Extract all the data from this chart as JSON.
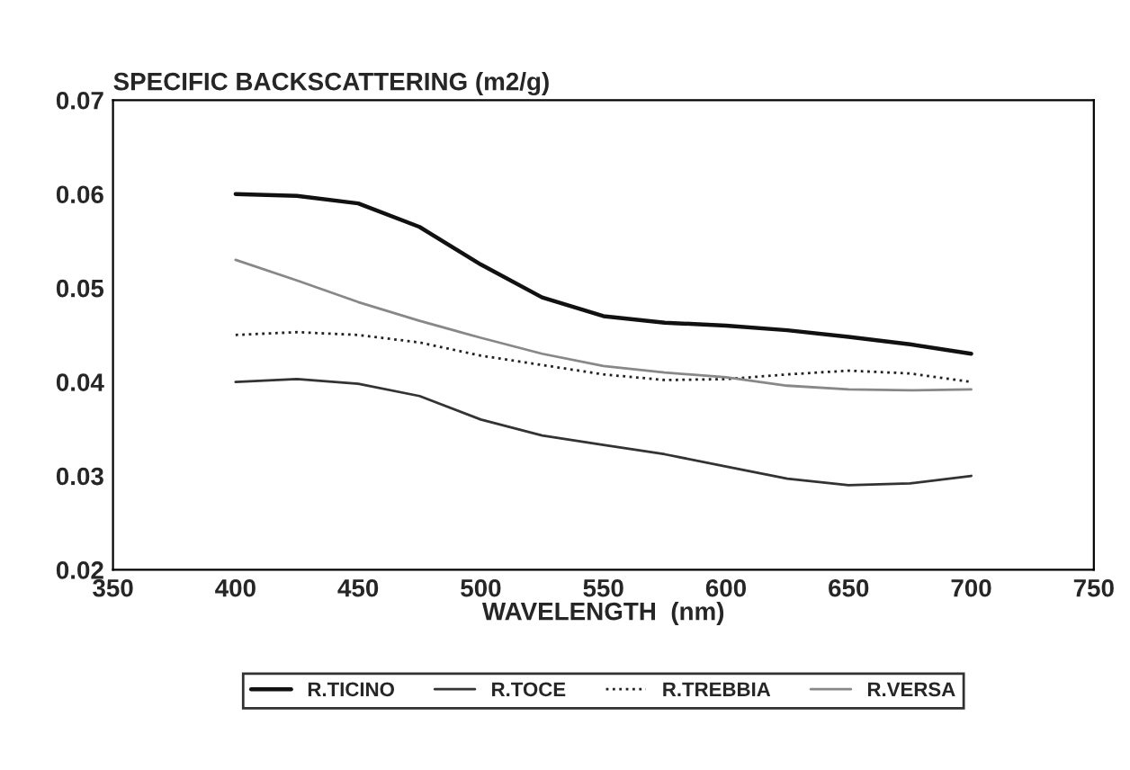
{
  "chart_data": {
    "type": "line",
    "title": "SPECIFIC BACKSCATTERING (m2/g)",
    "xlabel": "WAVELENGTH  (nm)",
    "x": [
      400,
      425,
      450,
      475,
      500,
      525,
      550,
      575,
      600,
      625,
      650,
      675,
      700
    ],
    "series": [
      {
        "name": "R.TICINO",
        "color": "#111111",
        "line_style": "solid",
        "values": [
          0.06,
          0.0598,
          0.059,
          0.0565,
          0.0525,
          0.049,
          0.047,
          0.0463,
          0.046,
          0.0455,
          0.0448,
          0.044,
          0.043
        ]
      },
      {
        "name": "R.TOCE",
        "color": "#333333",
        "line_style": "solid",
        "values": [
          0.04,
          0.0403,
          0.0398,
          0.0385,
          0.036,
          0.0343,
          0.0333,
          0.0323,
          0.031,
          0.0297,
          0.029,
          0.0292,
          0.03
        ]
      },
      {
        "name": "R.TREBBIA",
        "color": "#222222",
        "line_style": "dotted",
        "values": [
          0.045,
          0.0453,
          0.045,
          0.0442,
          0.0428,
          0.0418,
          0.0408,
          0.0402,
          0.0403,
          0.0408,
          0.0412,
          0.0409,
          0.04
        ]
      },
      {
        "name": "R.VERSA",
        "color": "#888888",
        "line_style": "solid",
        "values": [
          0.053,
          0.0508,
          0.0485,
          0.0465,
          0.0447,
          0.043,
          0.0417,
          0.041,
          0.0405,
          0.0396,
          0.0392,
          0.0391,
          0.0392
        ]
      }
    ],
    "xlim": [
      350,
      750
    ],
    "xticks": [
      350,
      400,
      450,
      500,
      550,
      600,
      650,
      700,
      750
    ],
    "ylim": [
      0.02,
      0.07
    ],
    "yticks": [
      0.02,
      0.03,
      0.04,
      0.05,
      0.06,
      0.07
    ],
    "grid": false,
    "legend": "bottom",
    "marker": "none"
  }
}
